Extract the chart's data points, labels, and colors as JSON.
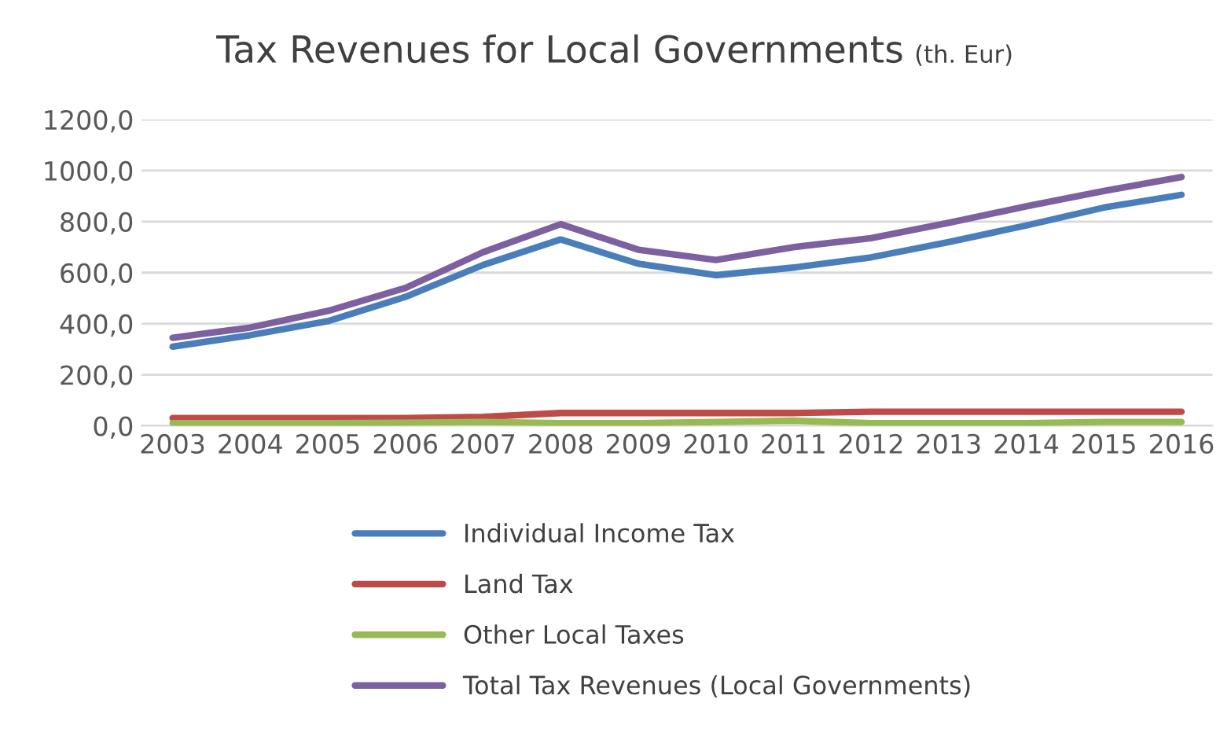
{
  "chart_data": {
    "type": "line",
    "title": "Tax Revenues for Local Governments",
    "subtitle": "(th. Eur)",
    "categories": [
      "2003",
      "2004",
      "2005",
      "2006",
      "2007",
      "2008",
      "2009",
      "2010",
      "2011",
      "2012",
      "2013",
      "2014",
      "2015",
      "2016"
    ],
    "series": [
      {
        "name": "Individual Income Tax",
        "color": "#4a7ebb",
        "values": [
          310,
          355,
          410,
          505,
          630,
          730,
          635,
          590,
          620,
          660,
          720,
          785,
          855,
          905
        ]
      },
      {
        "name": "Land Tax",
        "color": "#be4b48",
        "values": [
          30,
          30,
          30,
          30,
          35,
          50,
          50,
          50,
          50,
          55,
          55,
          55,
          55,
          55
        ]
      },
      {
        "name": "Other Local Taxes",
        "color": "#98b954",
        "values": [
          10,
          10,
          10,
          12,
          15,
          10,
          10,
          15,
          20,
          10,
          10,
          10,
          15,
          15
        ]
      },
      {
        "name": "Total Tax Revenues (Local Governments)",
        "color": "#7d60a0",
        "values": [
          345,
          385,
          450,
          540,
          680,
          790,
          690,
          650,
          700,
          735,
          795,
          860,
          920,
          975
        ]
      }
    ],
    "ylim": [
      0,
      1200
    ],
    "yticks": [
      {
        "value": 0,
        "label": "0,0"
      },
      {
        "value": 200,
        "label": "200,0"
      },
      {
        "value": 400,
        "label": "400,0"
      },
      {
        "value": 600,
        "label": "600,0"
      },
      {
        "value": 800,
        "label": "800,0"
      },
      {
        "value": 1000,
        "label": "1000,0"
      },
      {
        "value": 1200,
        "label": "1200,0"
      }
    ],
    "grid": "y",
    "legend": "bottom",
    "marker": "none",
    "line_style": "solid"
  }
}
